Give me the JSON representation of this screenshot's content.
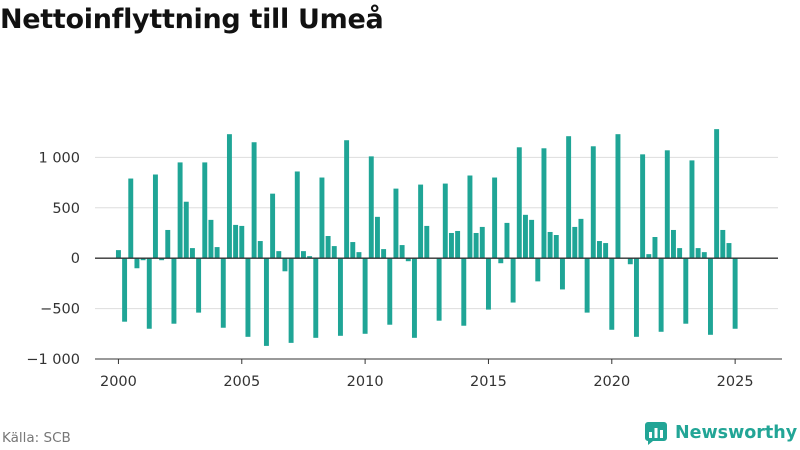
{
  "title": "Nettoinflyttning till Umeå",
  "source": "Källa: SCB",
  "brand": {
    "name": "Newsworthy",
    "icon": "bar-chart-logo-icon"
  },
  "colors": {
    "bar": "#1fa596",
    "zero_line": "#333333",
    "grid": "#dddddd",
    "brand": "#22a596"
  },
  "chart_data": {
    "type": "bar",
    "title": "Nettoinflyttning till Umeå",
    "xlabel": "",
    "ylabel": "",
    "xlim": [
      1999.05,
      2026.9
    ],
    "ylim": [
      -1000,
      1450
    ],
    "y_ticks": [
      {
        "value": 1000,
        "label": "1 000"
      },
      {
        "value": 500,
        "label": "500"
      },
      {
        "value": 0,
        "label": "0"
      },
      {
        "value": -500,
        "label": "−500"
      },
      {
        "value": -1000,
        "label": "−1 000"
      }
    ],
    "x_ticks": [
      {
        "value": 2000,
        "label": "2000"
      },
      {
        "value": 2005,
        "label": "2005"
      },
      {
        "value": 2010,
        "label": "2010"
      },
      {
        "value": 2015,
        "label": "2015"
      },
      {
        "value": 2020,
        "label": "2020"
      },
      {
        "value": 2025,
        "label": "2025"
      }
    ],
    "grid": true,
    "bar_width_years": 0.2,
    "x_first": 2000.0,
    "x_step": 0.25,
    "values": [
      80,
      -630,
      790,
      -100,
      -20,
      -700,
      830,
      -20,
      280,
      -650,
      950,
      560,
      100,
      -540,
      950,
      380,
      110,
      -690,
      1230,
      330,
      320,
      -780,
      1150,
      170,
      -870,
      640,
      70,
      -130,
      -840,
      860,
      70,
      20,
      -790,
      800,
      220,
      120,
      -770,
      1170,
      160,
      60,
      -750,
      1010,
      410,
      90,
      -660,
      690,
      130,
      -30,
      -790,
      730,
      320,
      0,
      -620,
      740,
      250,
      270,
      -670,
      820,
      250,
      310,
      -510,
      800,
      -50,
      350,
      -440,
      1100,
      430,
      380,
      -230,
      1090,
      260,
      230,
      -310,
      1210,
      310,
      390,
      -540,
      1110,
      170,
      150,
      -710,
      1230,
      0,
      -60,
      -780,
      1030,
      40,
      210,
      -730,
      1070,
      280,
      100,
      -650,
      970,
      100,
      60,
      -760,
      1280,
      280,
      150,
      -700
    ]
  }
}
